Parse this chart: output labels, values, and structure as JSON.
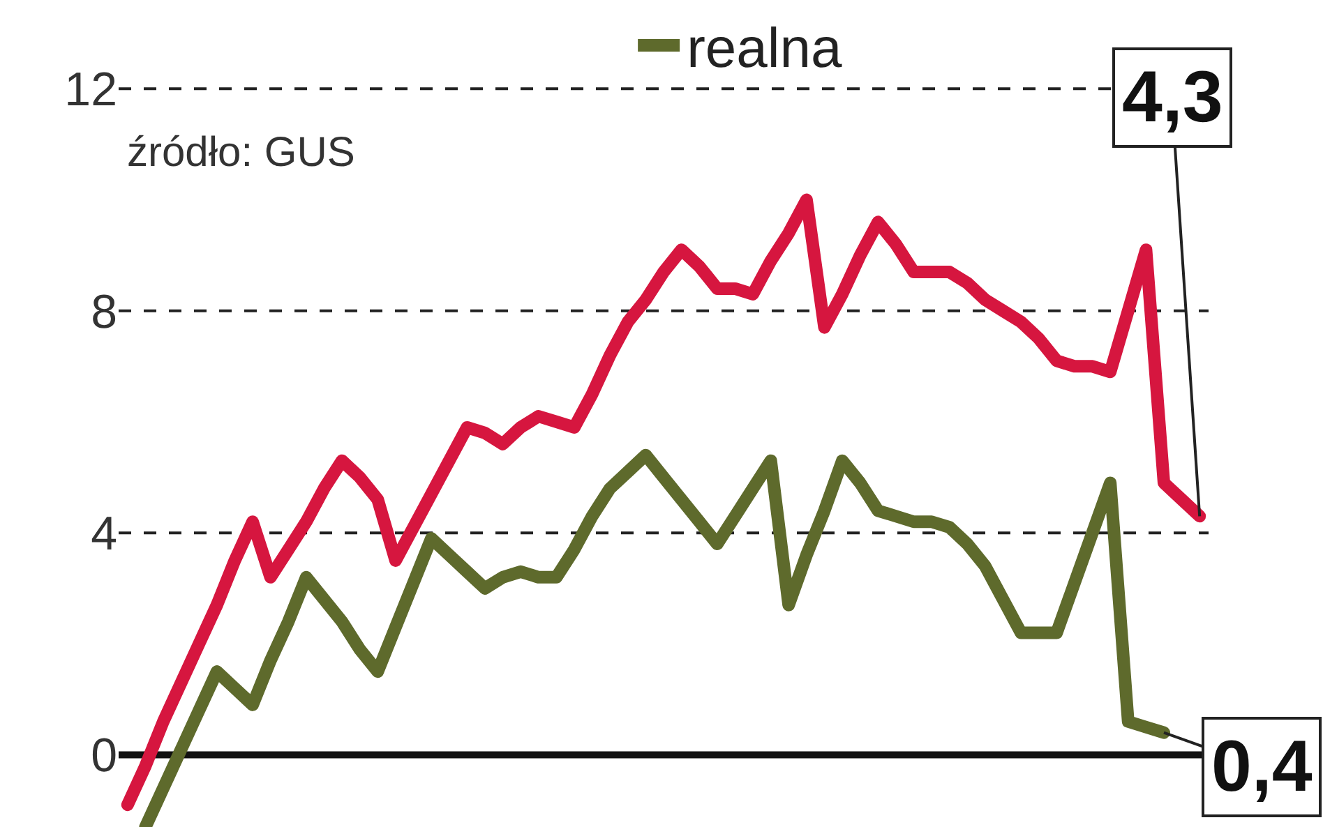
{
  "chart_data": {
    "type": "line",
    "categories": [
      null,
      null,
      null,
      null,
      null,
      null,
      null,
      null,
      null,
      null,
      null,
      null,
      null,
      null,
      null,
      null,
      null,
      null,
      null,
      null,
      null,
      null,
      null,
      null,
      null,
      null,
      null,
      null,
      null,
      null,
      null,
      null,
      null,
      null,
      null,
      null,
      null,
      null,
      null,
      null,
      null,
      null,
      null,
      null,
      null,
      null,
      null,
      null,
      null,
      null,
      null,
      null,
      null,
      null,
      null,
      null,
      null,
      null,
      null,
      null,
      null
    ],
    "ylim": [
      -1.3,
      13.6
    ],
    "yticks": [
      0,
      4,
      8,
      12
    ],
    "grid": "y",
    "tick_labels": "y",
    "legend": "top",
    "series": [
      {
        "color": "#d6163f",
        "values": [
          -0.9,
          -0.2,
          0.6,
          1.3,
          2.0,
          2.7,
          3.5,
          4.2,
          3.2,
          3.7,
          4.2,
          4.8,
          5.3,
          5.0,
          4.6,
          3.5,
          4.1,
          4.7,
          5.3,
          5.9,
          5.8,
          5.6,
          5.9,
          6.1,
          6.0,
          5.9,
          6.5,
          7.2,
          7.8,
          8.2,
          8.7,
          9.1,
          8.8,
          8.4,
          8.4,
          8.3,
          8.9,
          9.4,
          10.0,
          7.7,
          8.3,
          9.0,
          9.6,
          9.2,
          8.7,
          8.7,
          8.7,
          8.5,
          8.2,
          8.0,
          7.8,
          7.5,
          7.1,
          7.0,
          7.0,
          6.9,
          8.0,
          9.1,
          4.9,
          4.6,
          4.3
        ],
        "value_labels": [
          null,
          null,
          null,
          null,
          null,
          null,
          null,
          null,
          null,
          null,
          null,
          null,
          null,
          null,
          null,
          null,
          null,
          null,
          null,
          null,
          null,
          null,
          null,
          null,
          null,
          null,
          null,
          null,
          null,
          null,
          null,
          null,
          null,
          null,
          null,
          null,
          null,
          null,
          null,
          null,
          null,
          null,
          null,
          null,
          null,
          null,
          null,
          null,
          null,
          null,
          null,
          null,
          null,
          null,
          null,
          null,
          null,
          null,
          null,
          null,
          "4,3"
        ]
      },
      {
        "name": "realna",
        "color": "#5e6a2c",
        "values": [
          null,
          -1.3,
          -0.6,
          0.1,
          0.8,
          1.5,
          1.2,
          0.9,
          1.7,
          2.4,
          3.2,
          2.8,
          2.4,
          1.9,
          1.5,
          2.3,
          3.1,
          3.9,
          3.6,
          3.3,
          3.0,
          3.2,
          3.3,
          3.2,
          3.2,
          3.7,
          4.3,
          4.8,
          5.1,
          5.4,
          5.0,
          4.6,
          4.2,
          3.8,
          4.3,
          4.8,
          5.3,
          2.7,
          3.6,
          4.4,
          5.3,
          4.9,
          4.4,
          4.3,
          4.2,
          4.2,
          4.1,
          3.8,
          3.4,
          2.8,
          2.2,
          2.2,
          2.2,
          3.1,
          4.0,
          4.9,
          0.6,
          0.5,
          0.4,
          null,
          null
        ],
        "value_labels": [
          null,
          null,
          null,
          null,
          null,
          null,
          null,
          null,
          null,
          null,
          null,
          null,
          null,
          null,
          null,
          null,
          null,
          null,
          null,
          null,
          null,
          null,
          null,
          null,
          null,
          null,
          null,
          null,
          null,
          null,
          null,
          null,
          null,
          null,
          null,
          null,
          null,
          null,
          null,
          null,
          null,
          null,
          null,
          null,
          null,
          null,
          null,
          null,
          null,
          null,
          null,
          null,
          null,
          null,
          null,
          null,
          null,
          null,
          "0,4",
          null,
          null
        ]
      }
    ],
    "ref_lines": [
      {
        "axis": "y",
        "value": 0,
        "color": "#111111"
      }
    ],
    "annotations": [
      "źródło: GUS"
    ]
  }
}
